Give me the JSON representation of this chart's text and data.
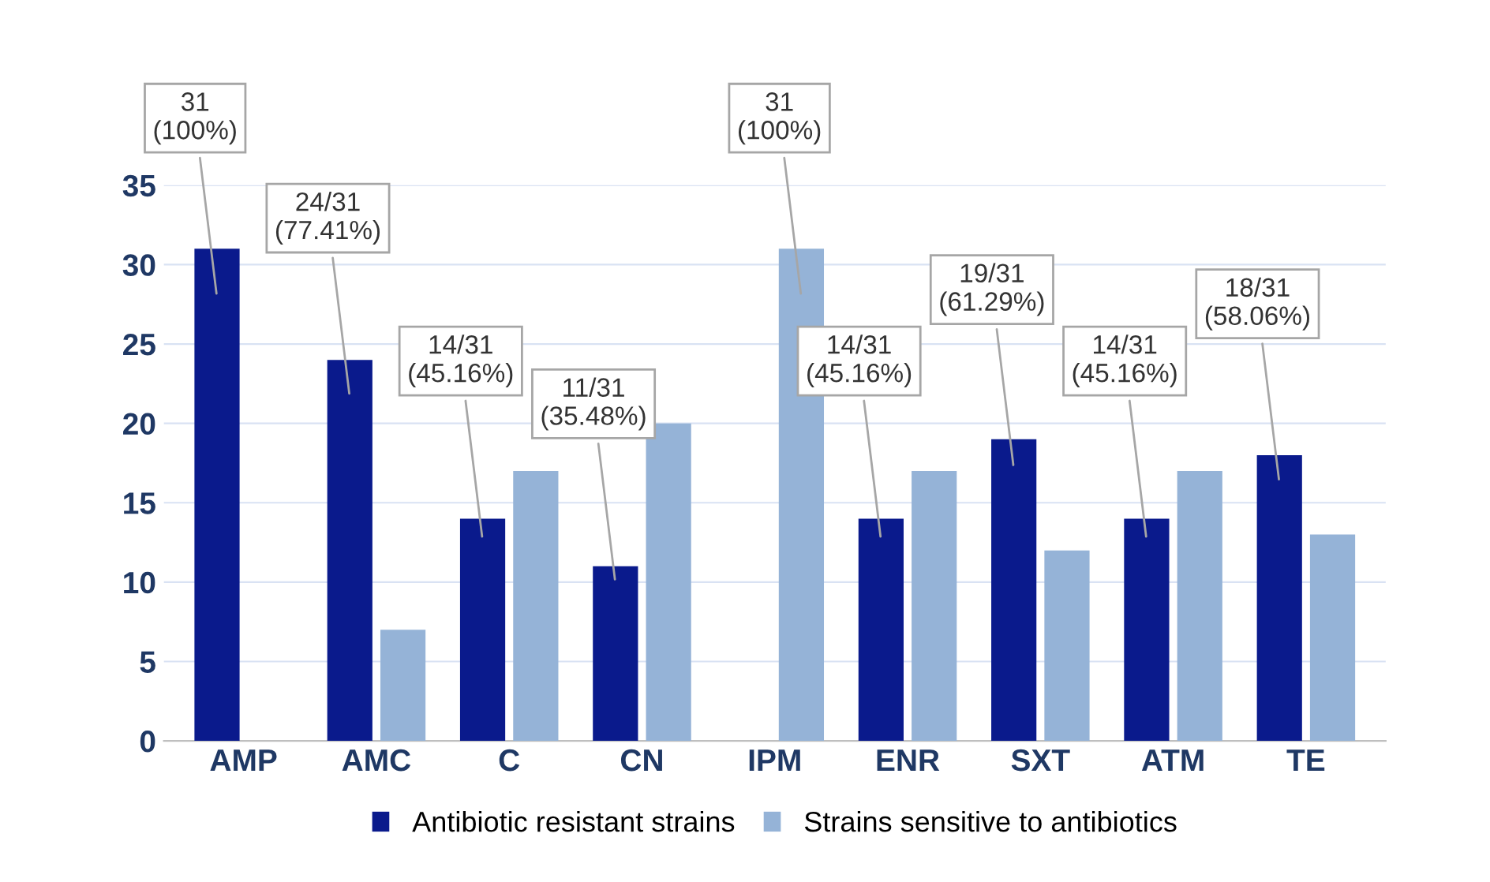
{
  "chart_data": {
    "type": "bar",
    "categories": [
      "AMP",
      "AMC",
      "C",
      "CN",
      "IPM",
      "ENR",
      "SXT",
      "ATM",
      "TE"
    ],
    "series": [
      {
        "name": "Antibiotic resistant strains",
        "color": "#0a1a8c",
        "values": [
          31,
          24,
          14,
          11,
          0,
          14,
          19,
          14,
          18
        ],
        "value_labels": [
          "31\n(100%)",
          "24/31\n(77.41%)",
          "14/31\n(45.16%)",
          "11/31\n(35.48%)",
          null,
          "14/31\n(45.16%)",
          "19/31\n(61.29%)",
          "14/31\n(45.16%)",
          "18/31\n(58.06%)"
        ]
      },
      {
        "name": "Strains sensitive to antibiotics",
        "color": "#95b3d7",
        "values": [
          0,
          7,
          17,
          20,
          31,
          17,
          12,
          17,
          13
        ],
        "value_labels": [
          null,
          null,
          null,
          null,
          "31\n(100%)",
          null,
          null,
          null,
          null
        ]
      }
    ],
    "ylim": [
      0,
      35
    ],
    "yticks": [
      0,
      5,
      10,
      15,
      20,
      25,
      30,
      35
    ],
    "grid": "y",
    "legend": "bottom"
  }
}
